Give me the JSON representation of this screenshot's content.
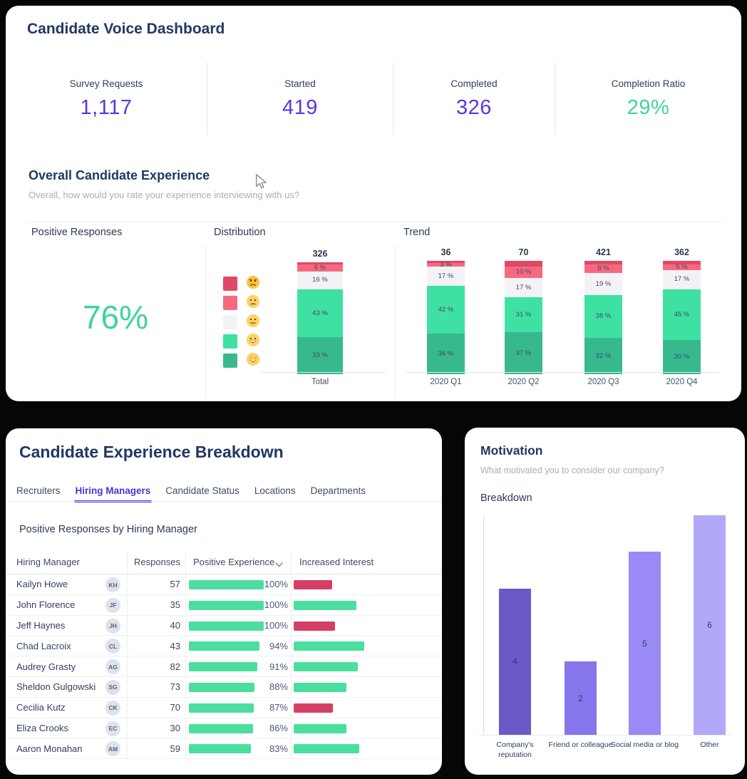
{
  "page": {
    "background": "#060606"
  },
  "colors": {
    "stat_purple": "#5a35e4",
    "stat_green": "#3ed598",
    "positive_green": "#3ed598",
    "table_green": "#4ade9f",
    "table_red": "#d53f66",
    "tab_active": "#4338d4"
  },
  "dashboard_card": {
    "title": "Candidate Voice Dashboard",
    "stats": [
      {
        "label": "Survey Requests",
        "value": "1,117",
        "color": "#5a35e4"
      },
      {
        "label": "Started",
        "value": "419",
        "color": "#5a35e4"
      },
      {
        "label": "Completed",
        "value": "326",
        "color": "#5a35e4"
      },
      {
        "label": "Completion Ratio",
        "value": "29%",
        "color": "#3ed598"
      }
    ],
    "experience": {
      "heading": "Overall Candidate Experience",
      "question": "Overall, how would you rate your experience interviewing with us?",
      "columns": {
        "positive": "Positive Responses",
        "distribution": "Distribution",
        "trend": "Trend"
      },
      "positive_value": "76%",
      "legend": [
        {
          "mood": "angry",
          "color": "#e04867"
        },
        {
          "mood": "frown",
          "color": "#f5697f"
        },
        {
          "mood": "neutral",
          "color": "#f3f2f6"
        },
        {
          "mood": "smile",
          "color": "#3fe1a2"
        },
        {
          "mood": "star",
          "color": "#38b98d"
        }
      ],
      "mood_order": [
        "angry",
        "frown",
        "neutral",
        "smile",
        "star"
      ],
      "mood_colors": {
        "angry": "#e04867",
        "frown": "#f5697f",
        "neutral": "#f3f2f6",
        "smile": "#3fe1a2",
        "star": "#38b98d"
      },
      "distribution": {
        "type": "bar",
        "stacked": true,
        "total": "326",
        "axis_label": "Total",
        "values": {
          "angry": 2,
          "frown": 6,
          "neutral": 16,
          "smile": 43,
          "star": 33
        }
      },
      "trend": {
        "type": "bar",
        "stacked": true,
        "quarters": [
          {
            "label": "2020 Q1",
            "total": "36",
            "values": {
              "angry": 2,
              "frown": 3,
              "neutral": 17,
              "smile": 42,
              "star": 36
            }
          },
          {
            "label": "2020 Q2",
            "total": "70",
            "values": {
              "angry": 5,
              "frown": 10,
              "neutral": 17,
              "smile": 31,
              "star": 37
            }
          },
          {
            "label": "2020 Q3",
            "total": "421",
            "values": {
              "angry": 3,
              "frown": 8,
              "neutral": 19,
              "smile": 38,
              "star": 32
            }
          },
          {
            "label": "2020 Q4",
            "total": "362",
            "values": {
              "angry": 3,
              "frown": 5,
              "neutral": 17,
              "smile": 45,
              "star": 30
            }
          }
        ]
      }
    }
  },
  "breakdown_card": {
    "title": "Candidate Experience Breakdown",
    "tabs": [
      {
        "label": "Recruiters",
        "active": false
      },
      {
        "label": "Hiring Managers",
        "active": true
      },
      {
        "label": "Candidate Status",
        "active": false
      },
      {
        "label": "Locations",
        "active": false
      },
      {
        "label": "Departments",
        "active": false
      }
    ],
    "subtitle": "Positive Responses by Hiring Manager",
    "table": {
      "headers": {
        "manager": "Hiring Manager",
        "responses": "Responses",
        "positive": "Positive Experience",
        "interest": "Increased Interest"
      },
      "rows": [
        {
          "name": "Kailyn Howe",
          "responses": "57",
          "positive_pct": 100,
          "positive_label": "100%",
          "interest_color": "red",
          "interest_width": 51
        },
        {
          "name": "John Florence",
          "responses": "35",
          "positive_pct": 100,
          "positive_label": "100%",
          "interest_color": "green",
          "interest_width": 84
        },
        {
          "name": "Jeff Haynes",
          "responses": "40",
          "positive_pct": 100,
          "positive_label": "100%",
          "interest_color": "red",
          "interest_width": 55
        },
        {
          "name": "Chad Lacroix",
          "responses": "43",
          "positive_pct": 94,
          "positive_label": "94%",
          "interest_color": "green",
          "interest_width": 94
        },
        {
          "name": "Audrey Grasty",
          "responses": "82",
          "positive_pct": 91,
          "positive_label": "91%",
          "interest_color": "green",
          "interest_width": 86
        },
        {
          "name": "Sheldon Gulgowski",
          "responses": "73",
          "positive_pct": 88,
          "positive_label": "88%",
          "interest_color": "green",
          "interest_width": 70
        },
        {
          "name": "Cecilia Kutz",
          "responses": "70",
          "positive_pct": 87,
          "positive_label": "87%",
          "interest_color": "red",
          "interest_width": 52
        },
        {
          "name": "Eliza Crooks",
          "responses": "30",
          "positive_pct": 86,
          "positive_label": "86%",
          "interest_color": "green",
          "interest_width": 70
        },
        {
          "name": "Aaron Monahan",
          "responses": "59",
          "positive_pct": 83,
          "positive_label": "83%",
          "interest_color": "green",
          "interest_width": 88
        }
      ]
    }
  },
  "motivation_card": {
    "title": "Motivation",
    "subtitle": "What motivated you to consider our company?",
    "chart_label": "Breakdown",
    "chart_data": {
      "type": "bar",
      "categories": [
        "Company's reputation",
        "Friend or colleague",
        "Social media or blog",
        "Other"
      ],
      "values": [
        4,
        2,
        5,
        6
      ],
      "colors": [
        "#6b58c7",
        "#8576ec",
        "#998af5",
        "#b2a8f8"
      ],
      "ymax": 6
    }
  }
}
